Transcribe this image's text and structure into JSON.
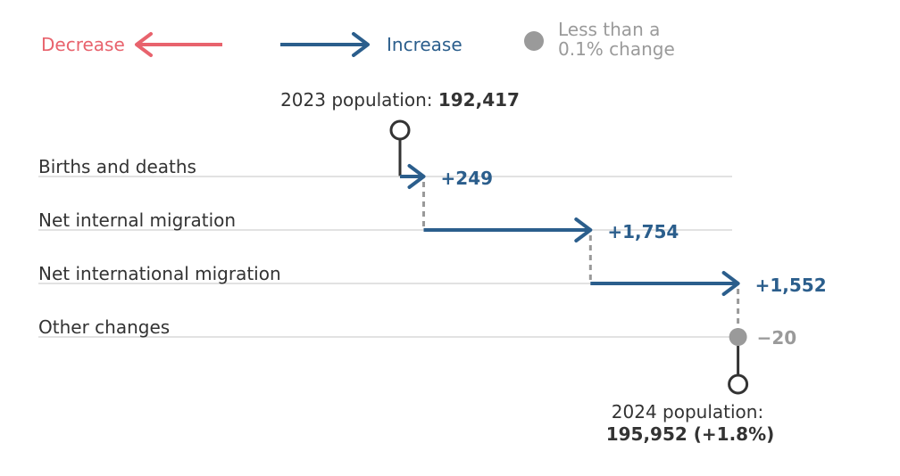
{
  "legend": {
    "decrease": {
      "label": "Decrease",
      "color": "#e8636d"
    },
    "increase": {
      "label": "Increase",
      "color": "#2b5e8c"
    },
    "neutral": {
      "label_line1": "Less than a",
      "label_line2": "0.1% change",
      "color": "#9a9a9a"
    }
  },
  "chart_data": {
    "type": "waterfall",
    "start": {
      "label_prefix": "2023 population: ",
      "value_text": "192,417",
      "value": 192417
    },
    "end": {
      "label_line1": "2024 population:",
      "label_line2": "195,952 (+1.8%)",
      "value": 195952,
      "pct_change": 1.8
    },
    "components": [
      {
        "name": "Births and deaths",
        "value": 249,
        "value_label": "+249",
        "kind": "increase"
      },
      {
        "name": "Net internal migration",
        "value": 1754,
        "value_label": "+1,754",
        "kind": "increase"
      },
      {
        "name": "Net international migration",
        "value": 1552,
        "value_label": "+1,552",
        "kind": "increase"
      },
      {
        "name": "Other changes",
        "value": -20,
        "value_label": "−20",
        "kind": "neutral"
      }
    ]
  },
  "colors": {
    "marker": "#333333",
    "connector": "#999999",
    "row_line": "#d9d9d9",
    "text": "#333333"
  }
}
